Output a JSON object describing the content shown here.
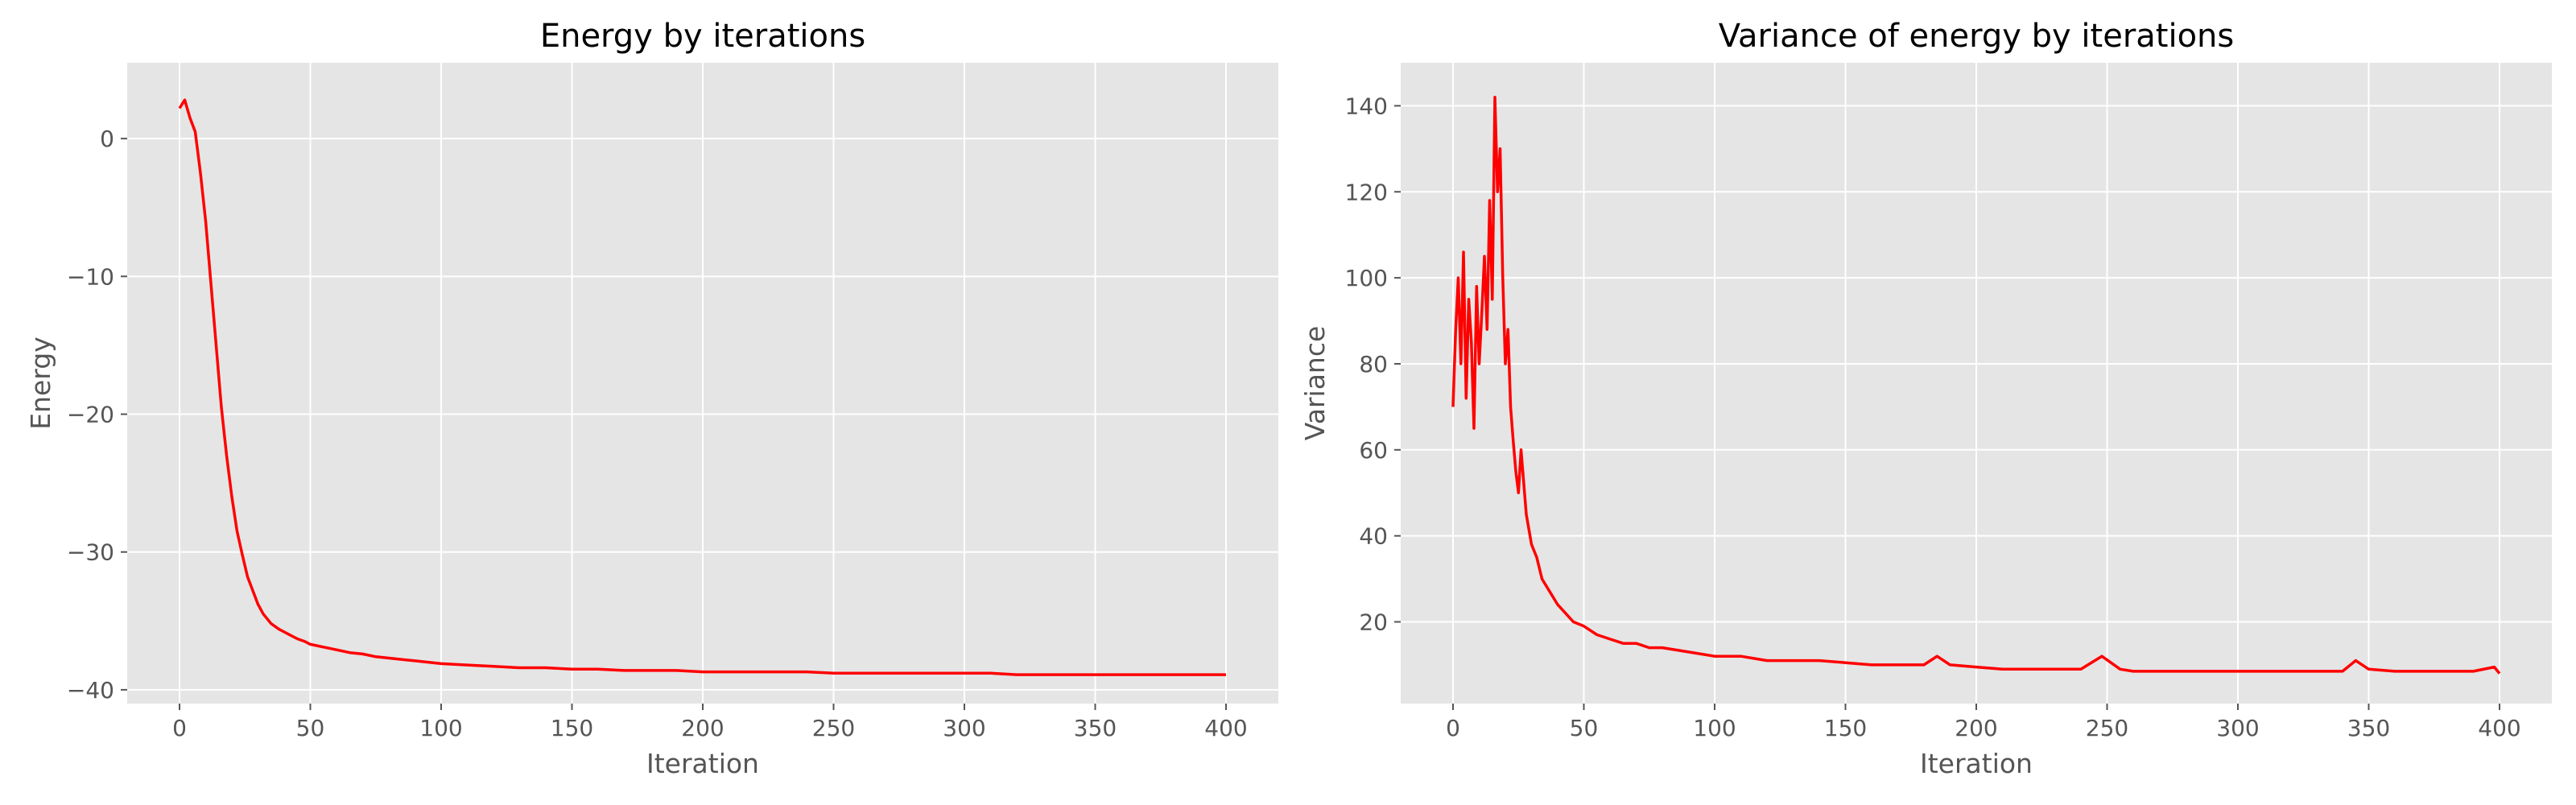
{
  "chart_data": [
    {
      "type": "line",
      "title": "Energy by iterations",
      "xlabel": "Iteration",
      "ylabel": "Energy",
      "xlim": [
        -20,
        420
      ],
      "ylim": [
        -41,
        5.5
      ],
      "xticks": [
        0,
        50,
        100,
        150,
        200,
        250,
        300,
        350,
        400
      ],
      "xtick_labels": [
        "0",
        "50",
        "100",
        "150",
        "200",
        "250",
        "300",
        "350",
        "400"
      ],
      "yticks": [
        0,
        -10,
        -20,
        -30,
        -40
      ],
      "ytick_labels": [
        "0",
        "−10",
        "−20",
        "−30",
        "−40"
      ],
      "grid": true,
      "series": [
        {
          "color": "#ff0000",
          "x": [
            0,
            2,
            4,
            6,
            8,
            10,
            12,
            14,
            16,
            18,
            20,
            22,
            24,
            26,
            28,
            30,
            32,
            35,
            38,
            40,
            42,
            45,
            48,
            50,
            55,
            60,
            65,
            70,
            75,
            80,
            90,
            100,
            110,
            120,
            130,
            140,
            150,
            160,
            170,
            180,
            190,
            200,
            210,
            220,
            230,
            240,
            250,
            260,
            270,
            280,
            290,
            300,
            310,
            320,
            330,
            340,
            350,
            360,
            370,
            380,
            390,
            400
          ],
          "y": [
            2.2,
            2.8,
            1.5,
            0.5,
            -2.5,
            -6.0,
            -10.5,
            -15.0,
            -19.5,
            -23.0,
            -26.0,
            -28.5,
            -30.2,
            -31.8,
            -32.8,
            -33.8,
            -34.5,
            -35.2,
            -35.6,
            -35.8,
            -36.0,
            -36.3,
            -36.5,
            -36.7,
            -36.9,
            -37.1,
            -37.3,
            -37.4,
            -37.6,
            -37.7,
            -37.9,
            -38.1,
            -38.2,
            -38.3,
            -38.4,
            -38.4,
            -38.5,
            -38.5,
            -38.6,
            -38.6,
            -38.6,
            -38.7,
            -38.7,
            -38.7,
            -38.7,
            -38.7,
            -38.8,
            -38.8,
            -38.8,
            -38.8,
            -38.8,
            -38.8,
            -38.8,
            -38.9,
            -38.9,
            -38.9,
            -38.9,
            -38.9,
            -38.9,
            -38.9,
            -38.9,
            -38.9
          ]
        }
      ]
    },
    {
      "type": "line",
      "title": "Variance of energy by iterations",
      "xlabel": "Iteration",
      "ylabel": "Variance",
      "xlim": [
        -20,
        420
      ],
      "ylim": [
        1,
        150
      ],
      "xticks": [
        0,
        50,
        100,
        150,
        200,
        250,
        300,
        350,
        400
      ],
      "xtick_labels": [
        "0",
        "50",
        "100",
        "150",
        "200",
        "250",
        "300",
        "350",
        "400"
      ],
      "yticks": [
        20,
        40,
        60,
        80,
        100,
        120,
        140
      ],
      "ytick_labels": [
        "20",
        "40",
        "60",
        "80",
        "100",
        "120",
        "140"
      ],
      "grid": true,
      "series": [
        {
          "color": "#ff0000",
          "x": [
            0,
            1,
            2,
            3,
            4,
            5,
            6,
            7,
            8,
            9,
            10,
            11,
            12,
            13,
            14,
            15,
            16,
            17,
            18,
            19,
            20,
            21,
            22,
            23,
            24,
            25,
            26,
            28,
            30,
            32,
            34,
            36,
            38,
            40,
            43,
            46,
            50,
            55,
            60,
            65,
            70,
            75,
            80,
            90,
            100,
            110,
            120,
            130,
            140,
            150,
            160,
            170,
            180,
            185,
            190,
            200,
            210,
            220,
            230,
            240,
            248,
            255,
            260,
            270,
            280,
            290,
            300,
            310,
            320,
            330,
            340,
            345,
            350,
            360,
            370,
            380,
            390,
            398,
            400
          ],
          "y": [
            70,
            88,
            100,
            80,
            106,
            72,
            95,
            85,
            65,
            98,
            80,
            92,
            105,
            88,
            118,
            95,
            142,
            120,
            130,
            100,
            80,
            88,
            70,
            62,
            55,
            50,
            60,
            45,
            38,
            35,
            30,
            28,
            26,
            24,
            22,
            20,
            19,
            17,
            16,
            15,
            15,
            14,
            14,
            13,
            12,
            12,
            11,
            11,
            11,
            10.5,
            10,
            10,
            10,
            12,
            10,
            9.5,
            9,
            9,
            9,
            9,
            12,
            9,
            8.5,
            8.5,
            8.5,
            8.5,
            8.5,
            8.5,
            8.5,
            8.5,
            8.5,
            11,
            9,
            8.5,
            8.5,
            8.5,
            8.5,
            9.5,
            8
          ]
        }
      ]
    }
  ]
}
